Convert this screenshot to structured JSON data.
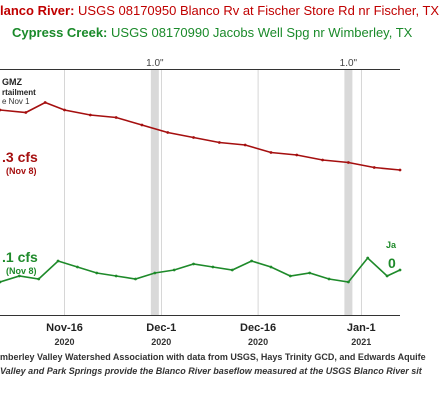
{
  "header": {
    "line1_name": "lanco River:",
    "line1_desc": "USGS 08170950 Blanco Rv at Fischer Store Rd nr Fischer, TX",
    "line2_name": "Cypress Creek:",
    "line2_desc": "USGS 08170990 Jacobs Well Spg nr Wimberley, TX"
  },
  "notes": {
    "gmz": "GMZ",
    "curtailment": "rtailment",
    "since": "e Nov 1",
    "rain1": "1.0\"",
    "rain2": "1.0\"",
    "jac": "Ja",
    "zero": "0"
  },
  "colors": {
    "blanco": "#a50f0f",
    "cypress": "#1e8a2a",
    "rain_band": "#d9d9d9"
  },
  "chart_data": {
    "type": "line",
    "x_tick_labels": [
      "Nov-16\n2020",
      "Dec-1\n2020",
      "Dec-16\n2020",
      "Jan-1\n2021"
    ],
    "xlim": [
      "2020-11-06",
      "2021-01-07"
    ],
    "series": [
      {
        "name": "Blanco River",
        "color": "#a50f0f",
        "annotation": ".3 cfs",
        "annotation_date": "(Nov 8)",
        "x": [
          "2020-11-06",
          "2020-11-10",
          "2020-11-13",
          "2020-11-16",
          "2020-11-20",
          "2020-11-24",
          "2020-11-28",
          "2020-12-02",
          "2020-12-06",
          "2020-12-10",
          "2020-12-14",
          "2020-12-18",
          "2020-12-22",
          "2020-12-26",
          "2020-12-30",
          "2021-01-03",
          "2021-01-07"
        ],
        "y": [
          9.2,
          9.1,
          9.5,
          9.2,
          9.0,
          8.9,
          8.6,
          8.3,
          8.1,
          7.9,
          7.8,
          7.5,
          7.4,
          7.2,
          7.1,
          6.9,
          6.8
        ]
      },
      {
        "name": "Cypress Creek",
        "color": "#1e8a2a",
        "annotation": ".1 cfs",
        "annotation_date": "(Nov 8)",
        "x": [
          "2020-11-06",
          "2020-11-09",
          "2020-11-12",
          "2020-11-15",
          "2020-11-18",
          "2020-11-21",
          "2020-11-24",
          "2020-11-27",
          "2020-11-30",
          "2020-12-03",
          "2020-12-06",
          "2020-12-09",
          "2020-12-12",
          "2020-12-15",
          "2020-12-18",
          "2020-12-21",
          "2020-12-24",
          "2020-12-27",
          "2020-12-30",
          "2021-01-02",
          "2021-01-05",
          "2021-01-07"
        ],
        "y": [
          1.1,
          1.3,
          1.2,
          1.8,
          1.6,
          1.4,
          1.3,
          1.2,
          1.4,
          1.5,
          1.7,
          1.6,
          1.5,
          1.8,
          1.6,
          1.3,
          1.4,
          1.2,
          1.1,
          1.9,
          1.3,
          1.5
        ]
      }
    ],
    "rain_markers": [
      {
        "date": "2020-11-30",
        "label": "1.0\""
      },
      {
        "date": "2020-12-30",
        "label": "1.0\""
      }
    ],
    "grid": true
  },
  "footer": {
    "line1": "mberley Valley Watershed Association with data from USGS, Hays Trinity GCD, and Edwards Aquife",
    "line2": "Valley and Park Springs provide the Blanco River baseflow measured at the USGS Blanco River sit"
  }
}
